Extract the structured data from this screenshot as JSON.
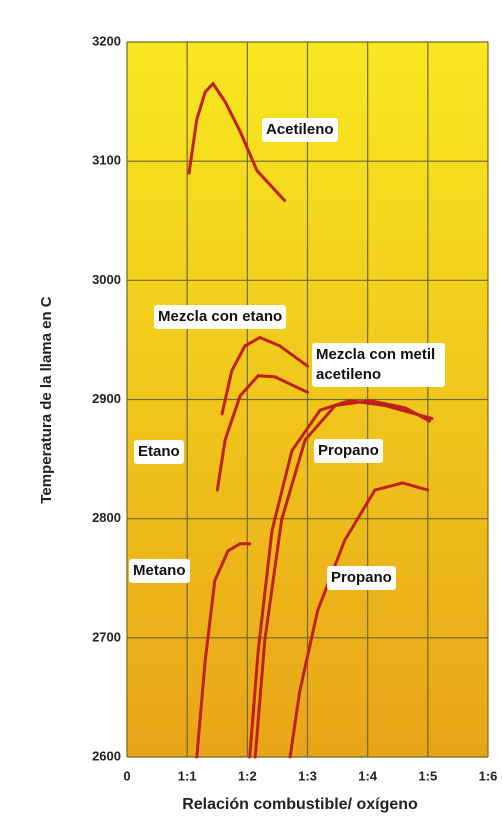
{
  "chart_data": {
    "type": "line",
    "xlabel": "Relación combustible/ oxígeno",
    "ylabel": "Temperatura de la llama en C",
    "xlim": [
      0,
      6
    ],
    "xticks": [
      0,
      {
        "value": 1,
        "label": "1:1"
      },
      {
        "value": 2,
        "label": "1:2"
      },
      {
        "value": 3,
        "label": "1:3"
      },
      {
        "value": 4,
        "label": "1:4"
      },
      {
        "value": 5,
        "label": "1:5"
      },
      {
        "value": 6,
        "label": "1:6"
      }
    ],
    "ylim": [
      2600,
      3200
    ],
    "yticks": [
      2600,
      2700,
      2800,
      2900,
      3000,
      3100,
      3200
    ],
    "grid": true,
    "series": [
      {
        "name": "Acetileno",
        "color": "#c0201c",
        "x": [
          1.03,
          1.16,
          1.3,
          1.43,
          1.63,
          1.88,
          2.16,
          2.62
        ],
        "values": [
          3090,
          3135,
          3158,
          3165,
          3150,
          3125,
          3092,
          3067
        ]
      },
      {
        "name": "Mezcla con etano",
        "color": "#c0201c",
        "x": [
          1.58,
          1.74,
          1.96,
          2.21,
          2.54,
          3.0
        ],
        "values": [
          2888,
          2924,
          2945,
          2952,
          2945,
          2928
        ]
      },
      {
        "name": "Mezcla con metil acetileno",
        "color": "#c0201c",
        "x": [
          2.04,
          2.18,
          2.41,
          2.74,
          3.21,
          3.7,
          4.29,
          5.07
        ],
        "values": [
          2600,
          2689,
          2790,
          2857,
          2891,
          2899,
          2895,
          2884
        ]
      },
      {
        "name": "Etano",
        "color": "#c0201c",
        "x": [
          1.5,
          1.63,
          1.88,
          2.18,
          2.46,
          3.0
        ],
        "values": [
          2824,
          2866,
          2903,
          2920,
          2919,
          2906
        ]
      },
      {
        "name": "Propano",
        "color": "#c0201c",
        "x": [
          2.13,
          2.29,
          2.57,
          2.96,
          3.46,
          4.04,
          4.62,
          5.03
        ],
        "values": [
          2600,
          2698,
          2799,
          2866,
          2895,
          2899,
          2893,
          2882
        ]
      },
      {
        "name": "Metano",
        "color": "#c0201c",
        "x": [
          1.16,
          1.3,
          1.46,
          1.68,
          1.88,
          2.04
        ],
        "values": [
          2600,
          2681,
          2748,
          2773,
          2779,
          2779
        ]
      },
      {
        "name": "Propano",
        "color": "#c0201c",
        "x": [
          2.71,
          2.87,
          3.17,
          3.62,
          4.12,
          4.58,
          5.0
        ],
        "values": [
          2600,
          2655,
          2723,
          2782,
          2824,
          2830,
          2824
        ]
      }
    ]
  }
}
